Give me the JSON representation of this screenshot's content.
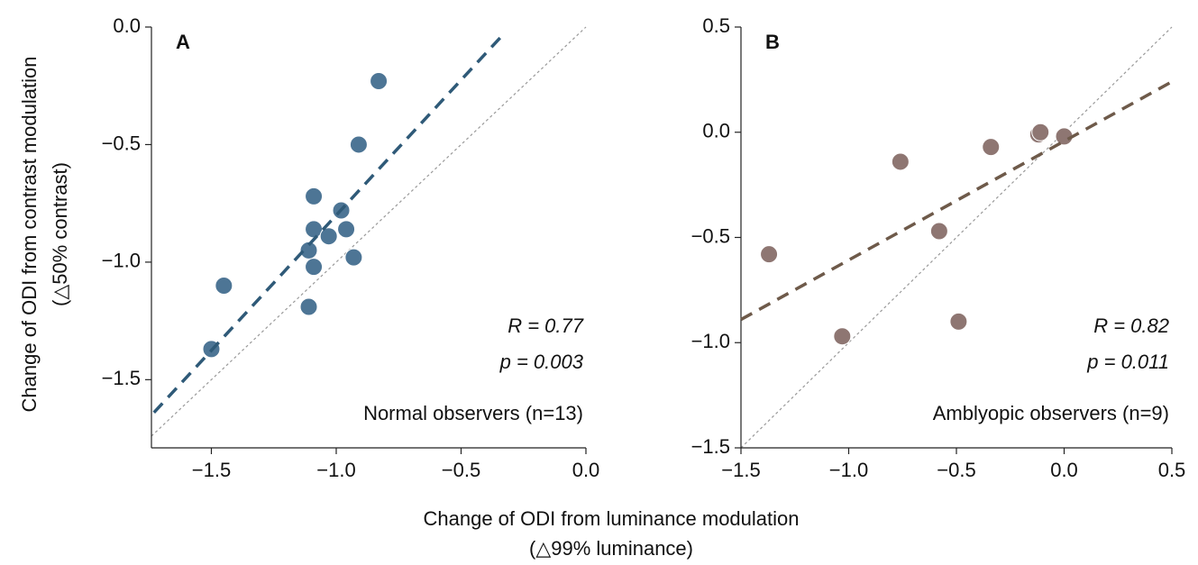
{
  "xlabel": [
    "Change of ODI from luminance modulation",
    "(△99% luminance)"
  ],
  "ylabel": [
    "Change of ODI from contrast modulation",
    "(△50% contrast)"
  ],
  "chart_data": [
    {
      "type": "scatter",
      "panel_label": "A",
      "color": "#4d7595",
      "fit_color": "#2f5a78",
      "x": [
        -0.83,
        -0.91,
        -1.09,
        -0.98,
        -1.09,
        -0.96,
        -1.03,
        -1.11,
        -1.09,
        -0.93,
        -1.45,
        -1.11,
        -1.5
      ],
      "y": [
        -0.23,
        -0.5,
        -0.72,
        -0.78,
        -0.86,
        -0.86,
        -0.89,
        -0.95,
        -1.02,
        -0.98,
        -1.1,
        -1.19,
        -1.37
      ],
      "fit": {
        "x": [
          -1.73,
          -0.33
        ],
        "y": [
          -1.64,
          -0.03
        ]
      },
      "annotations": [
        "R = 0.77",
        "p = 0.003"
      ],
      "note": "Normal observers (n=13)",
      "xlim": [
        -1.74,
        0
      ],
      "ylim": [
        -1.79,
        0
      ],
      "xticks": [
        {
          "value": -1.5,
          "label": "−1.5"
        },
        {
          "value": -1.0,
          "label": "−1.0"
        },
        {
          "value": -0.5,
          "label": "−0.5"
        },
        {
          "value": 0,
          "label": "0.0"
        }
      ],
      "yticks": [
        {
          "value": 0,
          "label": "0.0"
        },
        {
          "value": -0.5,
          "label": "−0.5"
        },
        {
          "value": -1.0,
          "label": "−1.0"
        },
        {
          "value": -1.5,
          "label": "−1.5"
        }
      ]
    },
    {
      "type": "scatter",
      "panel_label": "B",
      "color": "#8e7672",
      "fit_color": "#6e5a4a",
      "x": [
        -1.37,
        -1.03,
        -0.49,
        -0.58,
        -0.76,
        -0.34,
        -0.12,
        -0.11,
        0.0
      ],
      "y": [
        -0.58,
        -0.97,
        -0.9,
        -0.47,
        -0.14,
        -0.07,
        -0.01,
        0.0,
        -0.02
      ],
      "fit": {
        "x": [
          -1.5,
          0.5
        ],
        "y": [
          -0.89,
          0.24
        ]
      },
      "annotations": [
        "R = 0.82",
        "p = 0.011"
      ],
      "note": "Amblyopic observers (n=9)",
      "xlim": [
        -1.5,
        0.5
      ],
      "ylim": [
        -1.5,
        0.5
      ],
      "xticks": [
        {
          "value": -1.5,
          "label": "−1.5"
        },
        {
          "value": -1.0,
          "label": "−1.0"
        },
        {
          "value": -0.5,
          "label": "−0.5"
        },
        {
          "value": 0,
          "label": "0.0"
        },
        0.5
      ],
      "yticks": [
        0.5,
        {
          "value": 0,
          "label": "0.0"
        },
        {
          "value": -0.5,
          "label": "−0.5"
        },
        {
          "value": -1.0,
          "label": "−1.0"
        },
        {
          "value": -1.5,
          "label": "−1.5"
        }
      ]
    }
  ]
}
